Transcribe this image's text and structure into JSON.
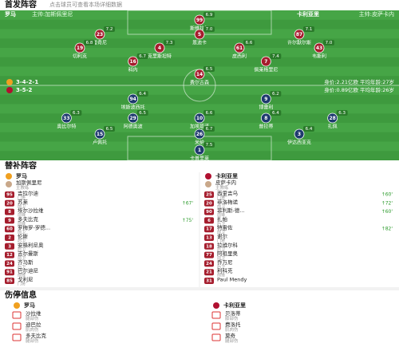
{
  "header": {
    "title": "首发阵容",
    "subtitle": "点击球员可查看本场详细数据"
  },
  "pitch": {
    "home": {
      "team": "罗马",
      "coach": "主帅:加斯佩里尼",
      "formation": "3-4-2-1",
      "info": "身价:2.21亿欧 平均年龄:27岁",
      "lines": [
        [
          {
            "num": "99",
            "name": "斯维拉尔",
            "rating": "6.9"
          }
        ],
        [
          {
            "num": "23",
            "name": "曼奇尼",
            "rating": "7.2"
          },
          {
            "num": "5",
            "name": "恩迪卡",
            "rating": "7.0"
          },
          {
            "num": "87",
            "name": "许尔默尔斯",
            "rating": "7.1"
          }
        ],
        [
          {
            "num": "19",
            "name": "切利克",
            "rating": "6.8"
          },
          {
            "num": "4",
            "name": "克里斯坦特",
            "rating": "7.3"
          },
          {
            "num": "61",
            "name": "皮西利",
            "rating": "6.6"
          },
          {
            "num": "43",
            "name": "韦斯利",
            "rating": "7.0"
          }
        ],
        [
          {
            "num": "16",
            "name": "科内",
            "rating": "6.7"
          },
          {
            "num": "7",
            "name": "佩莱格里尼",
            "rating": "7.4"
          }
        ],
        [
          {
            "num": "14",
            "name": "费尔古森",
            "rating": "6.5"
          }
        ]
      ]
    },
    "away": {
      "team": "卡利亚里",
      "coach": "主帅:皮萨卡内",
      "formation": "3-5-2",
      "info": "身价:0.89亿欧 平均年龄:26岁",
      "lines": [
        [
          {
            "num": "94",
            "name": "埃斯波西托",
            "rating": "6.4"
          },
          {
            "num": "9",
            "name": "博雷利",
            "rating": "6.2"
          }
        ],
        [
          {
            "num": "33",
            "name": "奥比尔特",
            "rating": "6.3"
          },
          {
            "num": "29",
            "name": "阿德奥波",
            "rating": "6.5"
          },
          {
            "num": "10",
            "name": "加埃塔诺",
            "rating": "6.6"
          },
          {
            "num": "8",
            "name": "普拉蒂",
            "rating": "6.4"
          },
          {
            "num": "28",
            "name": "扎佩",
            "rating": "6.3"
          }
        ],
        [
          {
            "num": "15",
            "name": "卢佩托",
            "rating": "6.5"
          },
          {
            "num": "26",
            "name": "米纳",
            "rating": "6.7"
          },
          {
            "num": "3",
            "name": "伊达西亚克",
            "rating": "6.4"
          }
        ],
        [
          {
            "num": "1",
            "name": "卡普里莱",
            "rating": "7.5"
          }
        ]
      ]
    }
  },
  "subs": {
    "title": "替补阵容",
    "home": {
      "team": "罗马",
      "coach": "加斯佩里尼",
      "coach_role": "主教练",
      "rows": [
        {
          "num": "95",
          "name": "吉拉尔迪",
          "pos": "门将",
          "sub": ""
        },
        {
          "num": "20",
          "name": "苏莱",
          "pos": "前卫",
          "sub": "↑67'"
        },
        {
          "num": "8",
          "name": "埃尔沙拉维",
          "pos": "前锋",
          "sub": ""
        },
        {
          "num": "9",
          "name": "多夫比克",
          "pos": "前锋",
          "sub": "↑75'"
        },
        {
          "num": "60",
          "name": "罗梅罗-罗德...",
          "pos": "前卫",
          "sub": ""
        },
        {
          "num": "2",
          "name": "伦斯",
          "pos": "后卫",
          "sub": ""
        },
        {
          "num": "3",
          "name": "安格利尼奥",
          "pos": "后卫",
          "sub": ""
        },
        {
          "num": "12",
          "name": "吉尔曼斯",
          "pos": "前卫",
          "sub": ""
        },
        {
          "num": "24",
          "name": "齐马斯",
          "pos": "后卫",
          "sub": ""
        },
        {
          "num": "91",
          "name": "巴尔迪尼",
          "pos": "前锋",
          "sub": ""
        },
        {
          "num": "85",
          "name": "戈利尼",
          "pos": "门将",
          "sub": ""
        }
      ]
    },
    "away": {
      "team": "卡利亚里",
      "coach": "皮萨卡内",
      "coach_role": "主教练",
      "rows": [
        {
          "num": "25",
          "name": "西里吉乌",
          "pos": "门将",
          "sub": "↑60'"
        },
        {
          "num": "20",
          "name": "菲洛梅诺",
          "pos": "前卫",
          "sub": "↑72'"
        },
        {
          "num": "90",
          "name": "菲利斯-德...",
          "pos": "前锋",
          "sub": "↑60'"
        },
        {
          "num": "6",
          "name": "扎帕",
          "pos": "后卫",
          "sub": ""
        },
        {
          "num": "17",
          "name": "特雷佐",
          "pos": "前卫",
          "sub": "↑82'"
        },
        {
          "num": "13",
          "name": "谢尔",
          "pos": "门将",
          "sub": ""
        },
        {
          "num": "18",
          "name": "拉维尔科",
          "pos": "后卫",
          "sub": ""
        },
        {
          "num": "77",
          "name": "阿祖里奥",
          "pos": "前卫",
          "sub": ""
        },
        {
          "num": "24",
          "name": "乔万尼",
          "pos": "后卫",
          "sub": ""
        },
        {
          "num": "21",
          "name": "利科克",
          "pos": "前锋",
          "sub": ""
        },
        {
          "num": "31",
          "name": "Paul Mendy",
          "pos": "",
          "sub": ""
        }
      ]
    }
  },
  "injuries": {
    "title": "伤停信息",
    "home": {
      "team": "罗马",
      "rows": [
        {
          "name": "沙拉维",
          "note": "腿部伤"
        },
        {
          "name": "迪巴拉",
          "note": "肌肉伤"
        },
        {
          "name": "多夫比克",
          "note": "腿部伤"
        }
      ]
    },
    "away": {
      "team": "卡利亚里",
      "rows": [
        {
          "name": "贝洛蒂",
          "note": "膝部伤"
        },
        {
          "name": "费洛托",
          "note": "肌肉伤"
        },
        {
          "name": "莫奇",
          "note": "腿部伤"
        }
      ]
    }
  }
}
